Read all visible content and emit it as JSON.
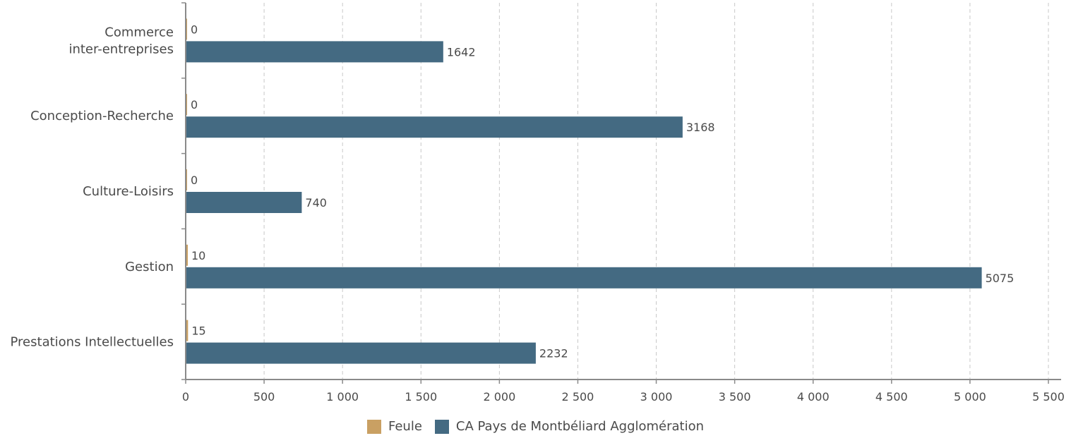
{
  "chart_data": {
    "type": "bar",
    "orientation": "horizontal",
    "categories": [
      [
        "Commerce",
        "inter-entreprises"
      ],
      [
        "Conception-Recherche"
      ],
      [
        "Culture-Loisirs"
      ],
      [
        "Gestion"
      ],
      [
        "Prestations Intellectuelles"
      ]
    ],
    "series": [
      {
        "name": "Feule",
        "color": "#c9a063",
        "values": [
          0,
          0,
          0,
          10,
          15
        ]
      },
      {
        "name": "CA Pays de Montbéliard Agglomération",
        "color": "#446a82",
        "values": [
          1642,
          3168,
          740,
          5075,
          2232
        ]
      }
    ],
    "data_labels": [
      [
        "0",
        "0",
        "0",
        "10",
        "15"
      ],
      [
        "1642",
        "3168",
        "740",
        "5075",
        "2232"
      ]
    ],
    "xlim": [
      0,
      5500
    ],
    "xticks": [
      0,
      500,
      1000,
      1500,
      2000,
      2500,
      3000,
      3500,
      4000,
      4500,
      5000,
      5500
    ],
    "xtick_labels": [
      "0",
      "500",
      "1 000",
      "1 500",
      "2 000",
      "2 500",
      "3 000",
      "3 500",
      "4 000",
      "4 500",
      "5 000",
      "5 500"
    ],
    "grid": "vertical dashed",
    "legend_position": "bottom"
  }
}
